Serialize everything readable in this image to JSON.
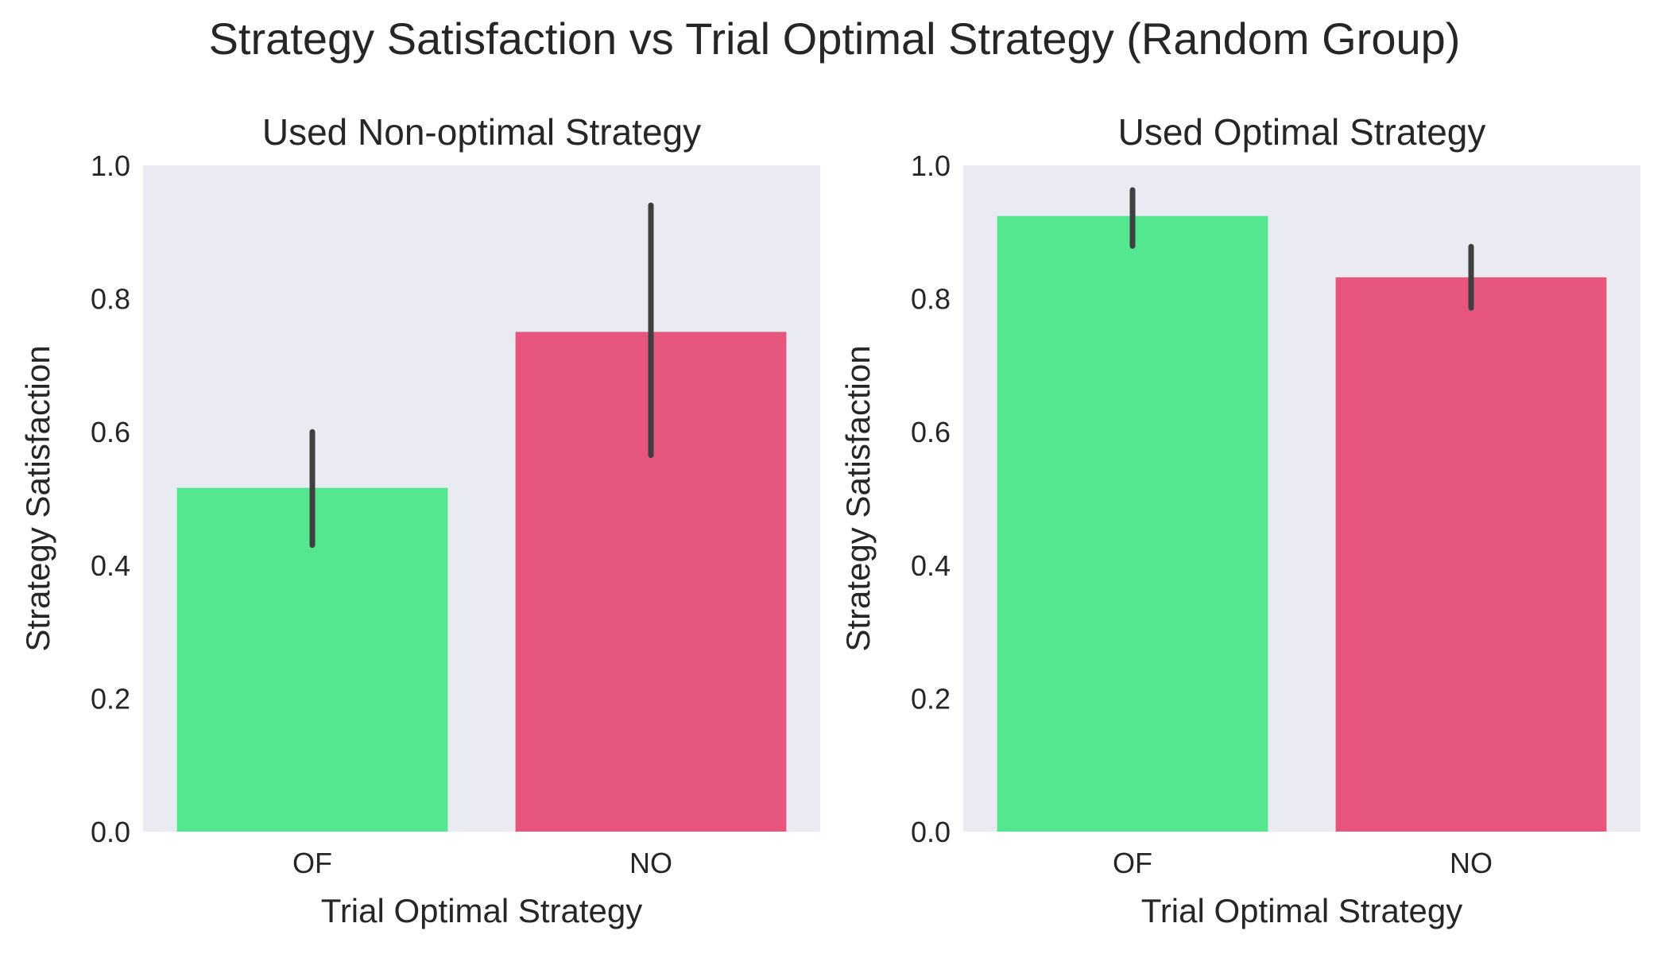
{
  "figure": {
    "title": "Strategy Satisfaction vs Trial Optimal Strategy (Random Group)"
  },
  "colors": {
    "background": "#ffffff",
    "plot_area": "#eaeaf2",
    "OF": "#55e690",
    "NO": "#e6567c",
    "error_bar": "#3f3f3f",
    "text": "#262626"
  },
  "chart_data": [
    {
      "type": "bar",
      "title": "Used Non-optimal Strategy",
      "xlabel": "Trial Optimal Strategy",
      "ylabel": "Strategy Satisfaction",
      "categories": [
        "OF",
        "NO"
      ],
      "values": [
        0.516,
        0.75
      ],
      "error_low": [
        0.43,
        0.565
      ],
      "error_high": [
        0.6,
        0.94
      ],
      "ylim": [
        0.0,
        1.0
      ],
      "yticks": [
        "0.0",
        "0.2",
        "0.4",
        "0.6",
        "0.8",
        "1.0"
      ],
      "grid": false
    },
    {
      "type": "bar",
      "title": "Used Optimal Strategy",
      "xlabel": "Trial Optimal Strategy",
      "ylabel": "Strategy Satisfaction",
      "categories": [
        "OF",
        "NO"
      ],
      "values": [
        0.924,
        0.832
      ],
      "error_low": [
        0.879,
        0.786
      ],
      "error_high": [
        0.963,
        0.878
      ],
      "ylim": [
        0.0,
        1.0
      ],
      "yticks": [
        "0.0",
        "0.2",
        "0.4",
        "0.6",
        "0.8",
        "1.0"
      ],
      "grid": false
    }
  ]
}
